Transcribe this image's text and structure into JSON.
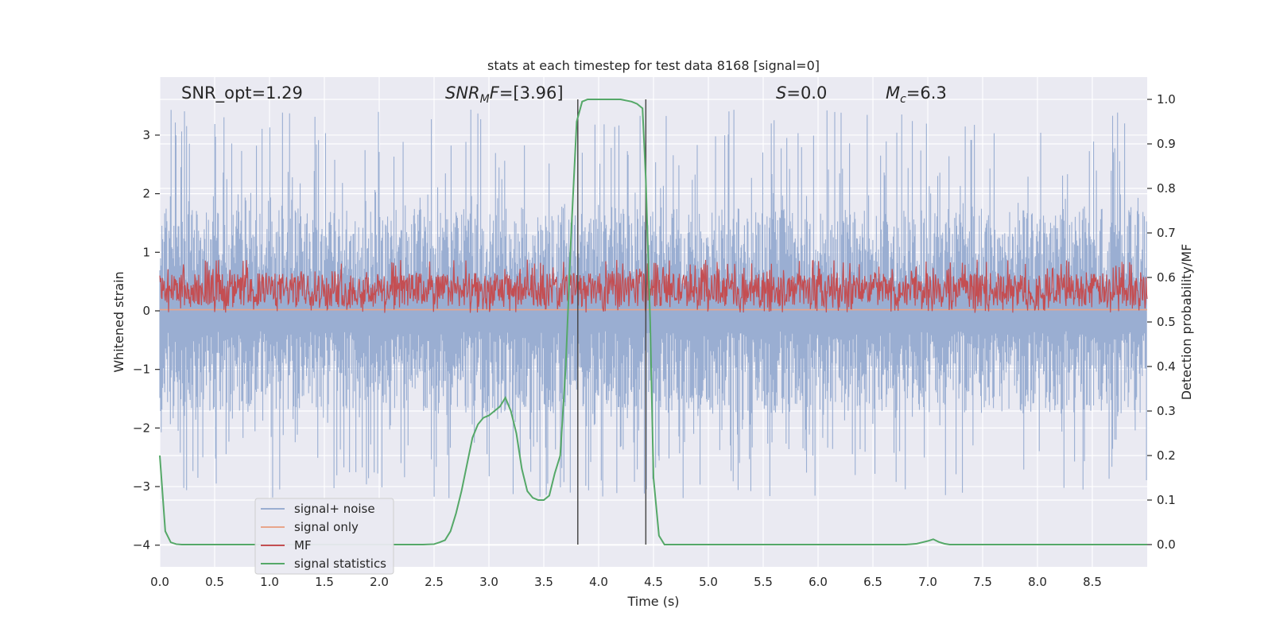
{
  "chart_data": {
    "type": "line",
    "title": "stats at each timestep for test data 8168 [signal=0]",
    "xlabel": "Time (s)",
    "ylabel_left": "Whitened strain",
    "ylabel_right": "Detection probability/MF",
    "xlim": [
      0.0,
      9.0
    ],
    "ylim_left": [
      -4.37,
      3.99
    ],
    "ylim_right": [
      -0.05,
      1.05
    ],
    "x_ticks": [
      "0.0",
      "0.5",
      "1.0",
      "1.5",
      "2.0",
      "2.5",
      "3.0",
      "3.5",
      "4.0",
      "4.5",
      "5.0",
      "5.5",
      "6.0",
      "6.5",
      "7.0",
      "7.5",
      "8.0",
      "8.5"
    ],
    "x_tick_values": [
      0,
      0.5,
      1,
      1.5,
      2,
      2.5,
      3,
      3.5,
      4,
      4.5,
      5,
      5.5,
      6,
      6.5,
      7,
      7.5,
      8,
      8.5
    ],
    "y_left_ticks": [
      "−4",
      "−3",
      "−2",
      "−1",
      "0",
      "1",
      "2",
      "3"
    ],
    "y_left_tick_values": [
      -4,
      -3,
      -2,
      -1,
      0,
      1,
      2,
      3
    ],
    "y_right_ticks": [
      "0.0",
      "0.1",
      "0.2",
      "0.3",
      "0.4",
      "0.5",
      "0.6",
      "0.7",
      "0.8",
      "0.9",
      "1.0"
    ],
    "y_right_tick_values": [
      0,
      0.1,
      0.2,
      0.3,
      0.4,
      0.5,
      0.6,
      0.7,
      0.8,
      0.9,
      1.0
    ],
    "annotations": {
      "snr_opt": "SNR_opt=1.29",
      "snr_mf": "=[3.96]",
      "snr_mf_sym": "SNR",
      "snr_mf_sub": "M",
      "snr_mf_f": "F",
      "s_value": "=0.0",
      "s_sym": "S",
      "mc_value": "=6.3",
      "mc_sym": "M",
      "mc_sub": "c"
    },
    "vertical_lines": [
      3.81,
      4.43
    ],
    "series": [
      {
        "name": "signal+ noise",
        "color": "#9aaed2",
        "kind": "noise",
        "axis": "left",
        "band": [
          -1.75,
          1.75
        ],
        "peak_range": [
          -3.2,
          3.45
        ]
      },
      {
        "name": "signal only",
        "color": "#e8a58a",
        "kind": "flat",
        "axis": "left",
        "value": 0.02
      },
      {
        "name": "MF",
        "color": "#c44e52",
        "kind": "mf",
        "axis": "right",
        "band": [
          0.535,
          0.61
        ]
      },
      {
        "name": "signal statistics",
        "color": "#55a868",
        "kind": "line",
        "axis": "right",
        "x": [
          0.0,
          0.05,
          0.1,
          0.15,
          0.2,
          0.3,
          0.5,
          1.0,
          1.5,
          2.0,
          2.4,
          2.5,
          2.55,
          2.6,
          2.65,
          2.7,
          2.75,
          2.8,
          2.85,
          2.9,
          2.95,
          3.0,
          3.05,
          3.1,
          3.15,
          3.2,
          3.25,
          3.3,
          3.35,
          3.4,
          3.45,
          3.5,
          3.55,
          3.6,
          3.65,
          3.7,
          3.75,
          3.8,
          3.85,
          3.9,
          3.95,
          4.0,
          4.1,
          4.2,
          4.3,
          4.35,
          4.4,
          4.43,
          4.47,
          4.5,
          4.55,
          4.6,
          4.65,
          4.7,
          5.0,
          6.0,
          6.8,
          6.9,
          6.95,
          7.0,
          7.05,
          7.1,
          7.15,
          7.2,
          7.5,
          8.0,
          8.5,
          9.0
        ],
        "y": [
          0.2,
          0.03,
          0.005,
          0.001,
          0.0,
          0.0,
          0.0,
          0.0,
          0.0,
          0.0,
          0.0,
          0.001,
          0.005,
          0.01,
          0.03,
          0.07,
          0.12,
          0.18,
          0.24,
          0.27,
          0.285,
          0.29,
          0.3,
          0.31,
          0.33,
          0.3,
          0.25,
          0.17,
          0.12,
          0.105,
          0.1,
          0.1,
          0.11,
          0.16,
          0.2,
          0.4,
          0.7,
          0.95,
          0.995,
          1.0,
          1.0,
          1.0,
          1.0,
          1.0,
          0.995,
          0.99,
          0.98,
          0.82,
          0.5,
          0.15,
          0.02,
          0.0,
          0.0,
          0.0,
          0.0,
          0.0,
          0.0,
          0.002,
          0.005,
          0.008,
          0.012,
          0.006,
          0.002,
          0.0,
          0.0,
          0.0,
          0.0,
          0.0
        ]
      }
    ],
    "legend_location": "lower-left"
  }
}
